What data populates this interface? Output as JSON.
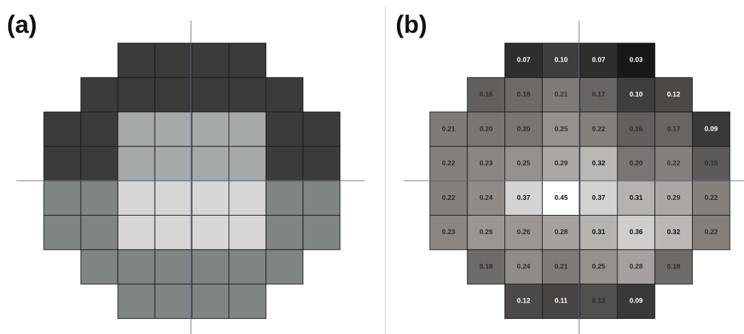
{
  "panels": [
    {
      "label": "(a)",
      "grid": [
        [
          null,
          null,
          "#3a3b3b",
          "#3a3b3b",
          "#3a3b3b",
          "#3a3b3b",
          null,
          null
        ],
        [
          null,
          "#3a3b3b",
          "#3a3b3b",
          "#3a3b3b",
          "#3a3b3b",
          "#3a3b3b",
          "#3a3b3b",
          null
        ],
        [
          "#3a3b3b",
          "#3a3b3b",
          "#a6a9aa",
          "#a6a9aa",
          "#a6a9aa",
          "#a6a9aa",
          "#3a3b3b",
          "#3a3b3b"
        ],
        [
          "#3a3b3b",
          "#3a3b3b",
          "#a6a9aa",
          "#a6a9aa",
          "#a6a9aa",
          "#a6a9aa",
          "#3a3b3b",
          "#3a3b3b"
        ],
        [
          "#7f8485",
          "#7f8485",
          "#d6d6d6",
          "#d6d6d6",
          "#d6d6d6",
          "#d6d6d6",
          "#7f8485",
          "#7f8485"
        ],
        [
          "#7f8485",
          "#7f8485",
          "#d6d6d6",
          "#d6d6d6",
          "#d6d6d6",
          "#d6d6d6",
          "#7f8485",
          "#7f8485"
        ],
        [
          null,
          "#7f8485",
          "#7f8485",
          "#7f8485",
          "#7f8485",
          "#7f8485",
          "#7f8485",
          null
        ],
        [
          null,
          null,
          "#7f8485",
          "#7f8485",
          "#7f8485",
          "#7f8485",
          null,
          null
        ]
      ]
    },
    {
      "label": "(b)",
      "grid": [
        [
          null,
          null,
          0.07,
          0.1,
          0.07,
          0.03,
          null,
          null
        ],
        [
          null,
          0.16,
          0.18,
          0.21,
          0.17,
          0.1,
          0.12,
          null
        ],
        [
          0.21,
          0.2,
          0.2,
          0.25,
          0.22,
          0.16,
          0.17,
          0.09
        ],
        [
          0.22,
          0.23,
          0.25,
          0.29,
          0.32,
          0.2,
          0.22,
          0.15
        ],
        [
          0.22,
          0.24,
          0.37,
          0.45,
          0.37,
          0.31,
          0.29,
          0.22
        ],
        [
          0.23,
          0.26,
          0.26,
          0.28,
          0.31,
          0.36,
          0.32,
          0.22
        ],
        [
          null,
          0.18,
          0.24,
          0.21,
          0.25,
          0.28,
          0.18,
          null
        ],
        [
          null,
          null,
          0.12,
          0.11,
          0.13,
          0.09,
          null,
          null
        ]
      ],
      "labels": [
        [
          null,
          null,
          "0.07",
          "0.10",
          "0.07",
          "0.03",
          null,
          null
        ],
        [
          null,
          "0.16",
          "0.18",
          "0.21",
          "0.17",
          "0.10",
          "0.12",
          null
        ],
        [
          "0.21",
          "0.20",
          "0.20",
          "0.25",
          "0.22",
          "0.16",
          "0.17",
          "0.09"
        ],
        [
          "0.22",
          "0.23",
          "0.25",
          "0.29",
          "0.32",
          "0.20",
          "0.22",
          "0.15"
        ],
        [
          "0.22",
          "0.24",
          "0.37",
          "0.45",
          "0.37",
          "0.31",
          "0.29",
          "0.22"
        ],
        [
          "0.23",
          "0.26",
          "0.26",
          "0.28",
          "0.31",
          "0.36",
          "0.32",
          "0.22"
        ],
        [
          null,
          "0.18",
          "0.24",
          "0.21",
          "0.25",
          "0.28",
          "0.18",
          null
        ],
        [
          null,
          null,
          "0.12",
          "0.11",
          "0.13",
          "0.09",
          null,
          null
        ]
      ]
    }
  ],
  "colors": {
    "background": "#ffffff",
    "cell_border": "#1a1a1a",
    "axis_line": "#6a6f86",
    "divider": "#c7c7c7"
  }
}
